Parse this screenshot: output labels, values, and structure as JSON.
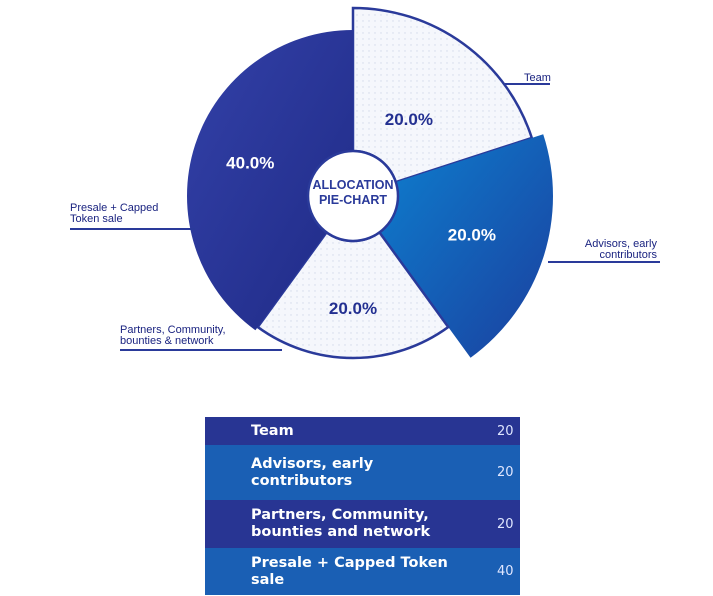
{
  "chart_data": {
    "type": "pie",
    "title": "ALLOCATION PIE-CHART",
    "title_lines": [
      "ALLOCATION",
      "PIE-CHART"
    ],
    "slices": [
      {
        "label": "Team",
        "label_lines": [
          "Team"
        ],
        "value": 20,
        "display": "20.0%",
        "color": "#f4f6fb"
      },
      {
        "label": "Advisors, early contributors",
        "label_lines": [
          "Advisors, early",
          "contributors"
        ],
        "value": 20,
        "display": "20.0%",
        "color": "#1565b8"
      },
      {
        "label": "Partners, Community, bounties & network",
        "label_lines": [
          "Partners, Community,",
          "bounties & network"
        ],
        "value": 20,
        "display": "20.0%",
        "color": "#f4f6fb"
      },
      {
        "label": "Presale + Capped Token sale",
        "label_lines": [
          "Presale + Capped",
          "Token  sale"
        ],
        "value": 40,
        "display": "40.0%",
        "color": "#283593"
      }
    ]
  },
  "table": {
    "rows": [
      {
        "name": "Team",
        "value": "20",
        "color": "#283593"
      },
      {
        "name": "Advisors, early contributors",
        "value": "20",
        "color": "#1a5fb4"
      },
      {
        "name": "Partners, Community, bounties and network",
        "value": "20",
        "color": "#283593"
      },
      {
        "name": "Presale + Capped Token sale",
        "value": "40",
        "color": "#1a5fb4"
      }
    ]
  },
  "colors": {
    "dark_blue": "#283593",
    "mid_blue": "#1565b8",
    "light_slice": "#f4f6fb",
    "outline": "#2a3a9a"
  }
}
